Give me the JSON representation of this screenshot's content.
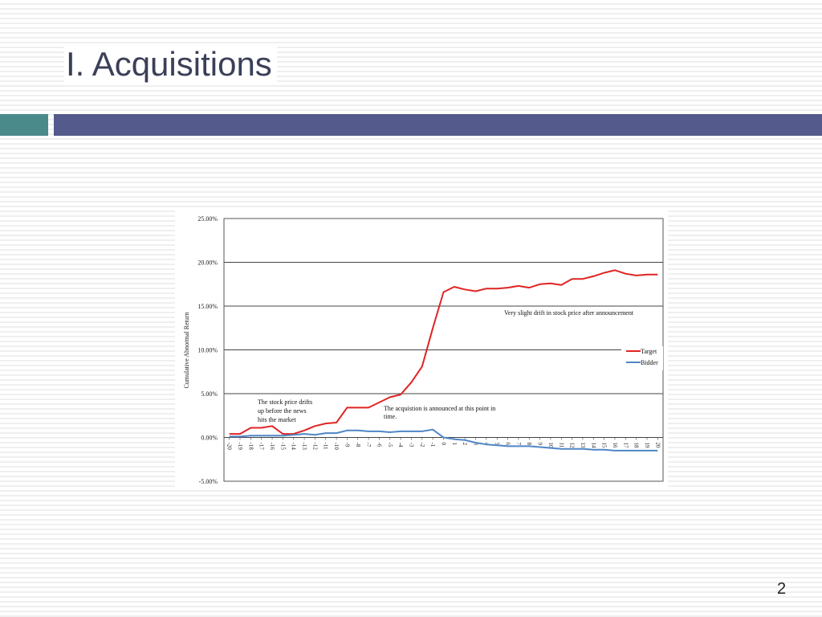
{
  "slide": {
    "title": "I. Acquisitions",
    "page_number": "2",
    "colors": {
      "title": "#3b3f58",
      "accent_left": "#4a8a8a",
      "accent_right": "#555a8c"
    }
  },
  "chart_data": {
    "type": "line",
    "title": "",
    "xlabel": "",
    "ylabel": "Cumulative Abnormal Return",
    "x": [
      -20,
      -19,
      -18,
      -17,
      -16,
      -15,
      -14,
      -13,
      -12,
      -11,
      -10,
      -9,
      -8,
      -7,
      -6,
      -5,
      -4,
      -3,
      -2,
      -1,
      0,
      1,
      2,
      3,
      4,
      5,
      6,
      7,
      8,
      9,
      10,
      11,
      12,
      13,
      14,
      15,
      16,
      17,
      18,
      19,
      20
    ],
    "ylim": [
      -0.05,
      0.25
    ],
    "yticks": [
      -0.05,
      0,
      0.05,
      0.1,
      0.15,
      0.2,
      0.25
    ],
    "ytick_labels": [
      "-5.00%",
      "0.00%",
      "5.00%",
      "10.00%",
      "15.00%",
      "20.00%",
      "25.00%"
    ],
    "grid": "horizontal",
    "legend": "right",
    "series": [
      {
        "name": "Target",
        "color": "#e02424",
        "values": [
          0.004,
          0.004,
          0.011,
          0.011,
          0.013,
          0.004,
          0.004,
          0.008,
          0.013,
          0.016,
          0.017,
          0.034,
          0.034,
          0.034,
          0.04,
          0.046,
          0.049,
          0.063,
          0.081,
          0.125,
          0.166,
          0.172,
          0.169,
          0.167,
          0.17,
          0.17,
          0.171,
          0.173,
          0.171,
          0.175,
          0.176,
          0.174,
          0.181,
          0.181,
          0.184,
          0.188,
          0.191,
          0.187,
          0.185,
          0.186,
          0.186
        ]
      },
      {
        "name": "Bidder",
        "color": "#4f86c6",
        "values": [
          0.001,
          0.001,
          0.002,
          0.002,
          0.002,
          0.002,
          0.003,
          0.004,
          0.003,
          0.005,
          0.005,
          0.008,
          0.008,
          0.007,
          0.007,
          0.006,
          0.007,
          0.007,
          0.007,
          0.009,
          0.0,
          -0.002,
          -0.003,
          -0.006,
          -0.008,
          -0.009,
          -0.01,
          -0.01,
          -0.01,
          -0.011,
          -0.012,
          -0.013,
          -0.013,
          -0.013,
          -0.014,
          -0.014,
          -0.015,
          -0.015,
          -0.015,
          -0.015,
          -0.015
        ]
      }
    ],
    "annotations": {
      "pre_drift": [
        "The stock price drifts",
        "up before the news",
        "hits the market"
      ],
      "announcement": [
        "The acquistion is announced at this point in",
        "time."
      ],
      "post_drift": "Very slight drift in stock price after announcement"
    }
  }
}
